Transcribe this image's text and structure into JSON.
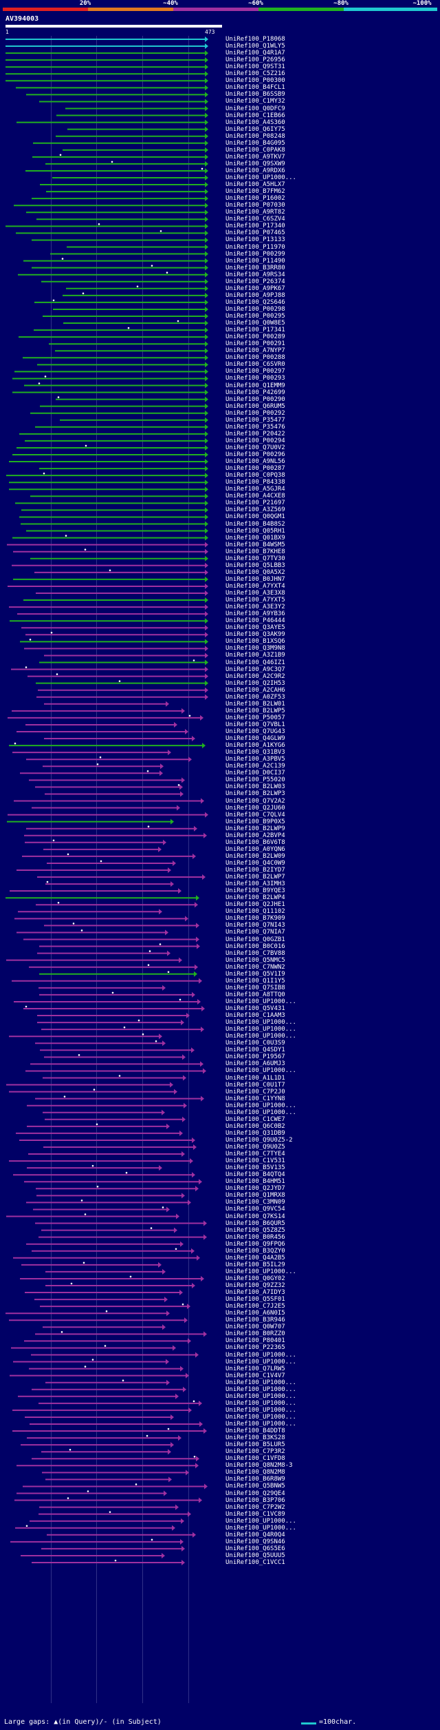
{
  "header": {
    "identity_labels": [
      "20%",
      "~40%",
      "~60%",
      "~80%",
      "~100%"
    ],
    "identity_colors": [
      "#e02020",
      "#e07820",
      "#a030a0",
      "#20b020",
      "#20c8d0"
    ],
    "query_id": "AV394003",
    "ruler_start": "1",
    "ruler_end": "473"
  },
  "footer": {
    "gaps_legend": "Large gaps: ▲(in Query)/- (in Subject)",
    "scale_label": "=100char."
  },
  "hits": [
    "UniRef100_P18068",
    "UniRef100_Q1WLY5",
    "UniRef100_Q4R1A7",
    "UniRef100_P26956",
    "UniRef100_Q9ST31",
    "UniRef100_C5Z216",
    "UniRef100_P00300",
    "UniRef100_B4FCL1",
    "UniRef100_B6SSB9",
    "UniRef100_C1MY32",
    "UniRef100_Q0DFC9",
    "UniRef100_C1EB66",
    "UniRef100_A4S360",
    "UniRef100_Q6IY75",
    "UniRef100_P08248",
    "UniRef100_B4G095",
    "UniRef100_C0PAK8",
    "UniRef100_A9TKV7",
    "UniRef100_Q9SXW9",
    "UniRef100_A9RDX6",
    "UniRef100_UP1000...",
    "UniRef100_A5HLX7",
    "UniRef100_B7FM62",
    "UniRef100_P16002",
    "UniRef100_P07030",
    "UniRef100_A9RT82",
    "UniRef100_C6SZV4",
    "UniRef100_P17340",
    "UniRef100_P07465",
    "UniRef100_P13133",
    "UniRef100_P11970",
    "UniRef100_P00299",
    "UniRef100_P11490",
    "UniRef100_B3RR80",
    "UniRef100_A9RS34",
    "UniRef100_P26374",
    "UniRef100_A9PK67",
    "UniRef100_A9PJ88",
    "UniRef100_Q2S646",
    "UniRef100_P00298",
    "UniRef100_P00295",
    "UniRef100_Q0W8E5",
    "UniRef100_P17341",
    "UniRef100_P00289",
    "UniRef100_P00291",
    "UniRef100_A7NYP7",
    "UniRef100_P00288",
    "UniRef100_C6SVR0",
    "UniRef100_P00297",
    "UniRef100_P00293",
    "UniRef100_Q1EMM9",
    "UniRef100_P42699",
    "UniRef100_P00290",
    "UniRef100_Q6RUM5",
    "UniRef100_P00292",
    "UniRef100_P35477",
    "UniRef100_P35476",
    "UniRef100_P20422",
    "UniRef100_P00294",
    "UniRef100_Q7U0V2",
    "UniRef100_P00296",
    "UniRef100_A9NL56",
    "UniRef100_P00287",
    "UniRef100_C0PQ38",
    "UniRef100_P84338",
    "UniRef100_A5GJR4",
    "UniRef100_A4CXE8",
    "UniRef100_P21697",
    "UniRef100_A3Z569",
    "UniRef100_Q0QGM1",
    "UniRef100_B4B8S2",
    "UniRef100_Q05RH1",
    "UniRef100_Q01BX9",
    "UniRef100_B4WSM5",
    "UniRef100_B7KHE8",
    "UniRef100_Q7TV30",
    "UniRef100_Q5LBB3",
    "UniRef100_Q0A5X2",
    "UniRef100_B0JHN7",
    "UniRef100_A7YXT4",
    "UniRef100_A3E3X8",
    "UniRef100_A7YXT5",
    "UniRef100_A3E3Y2",
    "UniRef100_A9YB36",
    "UniRef100_P46444",
    "UniRef100_Q3AYE5",
    "UniRef100_Q3AK99",
    "UniRef100_B1XSQ6",
    "UniRef100_Q3M9N8",
    "UniRef100_A3Z1B9",
    "UniRef100_Q46IZ1",
    "UniRef100_A9C3Q7",
    "UniRef100_A2C9R2",
    "UniRef100_Q2IH53",
    "UniRef100_A2CAH6",
    "UniRef100_A0ZF53",
    "UniRef100_B2LW01",
    "UniRef100_B2LWP5",
    "UniRef100_P50057",
    "UniRef100_Q7VBL1",
    "UniRef100_Q7UG43",
    "UniRef100_Q4GLW9",
    "UniRef100_A1KYG6",
    "UniRef100_Q31BV3",
    "UniRef100_A3PBV5",
    "UniRef100_A2C139",
    "UniRef100_D0CI37",
    "UniRef100_P55020",
    "UniRef100_B2LW03",
    "UniRef100_B2LWP3",
    "UniRef100_Q7V2A2",
    "UniRef100_Q2JU60",
    "UniRef100_C7QLV4",
    "UniRef100_B9P0X5",
    "UniRef100_B2LWP9",
    "UniRef100_A2BVP4",
    "UniRef100_B6V6T8",
    "UniRef100_A0YQN6",
    "UniRef100_B2LW09",
    "UniRef100_Q4C0W9",
    "UniRef100_B2IYD7",
    "UniRef100_B2LWP7",
    "UniRef100_A3IMH3",
    "UniRef100_B9YQE3",
    "UniRef100_B2LWP4",
    "UniRef100_Q2JHE1",
    "UniRef100_Q11102",
    "UniRef100_B7K909",
    "UniRef100_Q7NI43",
    "UniRef100_Q7NIA7",
    "UniRef100_Q0GZB1",
    "UniRef100_B0C016",
    "UniRef100_C7BV88",
    "UniRef100_Q5NMC5",
    "UniRef100_C7NWN2",
    "UniRef100_Q5V1I9",
    "UniRef100_Q1I1Y5",
    "UniRef100_Q7SIB8",
    "UniRef100_A8TTQ0",
    "UniRef100_UP1000...",
    "UniRef100_Q5V431",
    "UniRef100_C1AAM3",
    "UniRef100_UP1000...",
    "UniRef100_UP1000...",
    "UniRef100_UP1000...",
    "UniRef100_C0U3S9",
    "UniRef100_Q4SDY1",
    "UniRef100_P19567",
    "UniRef100_A6UMJ3",
    "UniRef100_UP1000...",
    "UniRef100_A1L1D1",
    "UniRef100_C0U1T7",
    "UniRef100_C7P2J0",
    "UniRef100_C1YYN8",
    "UniRef100_UP1000...",
    "UniRef100_UP1000...",
    "UniRef100_C1CWE7",
    "UniRef100_Q6C0B2",
    "UniRef100_Q31DB9",
    "UniRef100_Q9U0Z5-2",
    "UniRef100_Q9U0Z5",
    "UniRef100_C7TYE4",
    "UniRef100_C1V531",
    "UniRef100_B5V135",
    "UniRef100_B4QTQ4",
    "UniRef100_B4HM51",
    "UniRef100_Q2JYD7",
    "UniRef100_Q1MRX8",
    "UniRef100_C3MN09",
    "UniRef100_Q9VC54",
    "UniRef100_Q7KS14",
    "UniRef100_B6QUR5",
    "UniRef100_Q5Z8Z5",
    "UniRef100_B0R456",
    "UniRef100_Q9FPQ6",
    "UniRef100_B3QZY0",
    "UniRef100_Q4A2B5",
    "UniRef100_B5IL29",
    "UniRef100_UP1000...",
    "UniRef100_Q0GY02",
    "UniRef100_Q9ZZ32",
    "UniRef100_A7IDY3",
    "UniRef100_Q5SF01",
    "UniRef100_C7J2E5",
    "UniRef100_A6N0I5",
    "UniRef100_B3R946",
    "UniRef100_Q0W707",
    "UniRef100_B0RZZ0",
    "UniRef100_P80401",
    "UniRef100_P22365",
    "UniRef100_UP1000...",
    "UniRef100_UP1000...",
    "UniRef100_Q7LRW5",
    "UniRef100_C1V4V7",
    "UniRef100_UP1000...",
    "UniRef100_UP1000...",
    "UniRef100_UP1000...",
    "UniRef100_UP1000...",
    "UniRef100_UP1000...",
    "UniRef100_UP1000...",
    "UniRef100_UP1000...",
    "UniRef100_B4DDT8",
    "UniRef100_B3KS28",
    "UniRef100_B5LUR5",
    "UniRef100_C7P3R2",
    "UniRef100_C1VFD8",
    "UniRef100_Q8N2M8-3",
    "UniRef100_Q8N2M8",
    "UniRef100_B6R8W9",
    "UniRef100_Q5BNW5",
    "UniRef100_Q29QE4",
    "UniRef100_B3P706",
    "UniRef100_C7P2W2",
    "UniRef100_C1VC89",
    "UniRef100_UP1000...",
    "UniRef100_UP1000...",
    "UniRef100_Q4R0Q4",
    "UniRef100_Q9SN46",
    "UniRef100_Q6S5E6",
    "UniRef100_Q5UUU5",
    "UniRef100_C1VCC1"
  ]
}
